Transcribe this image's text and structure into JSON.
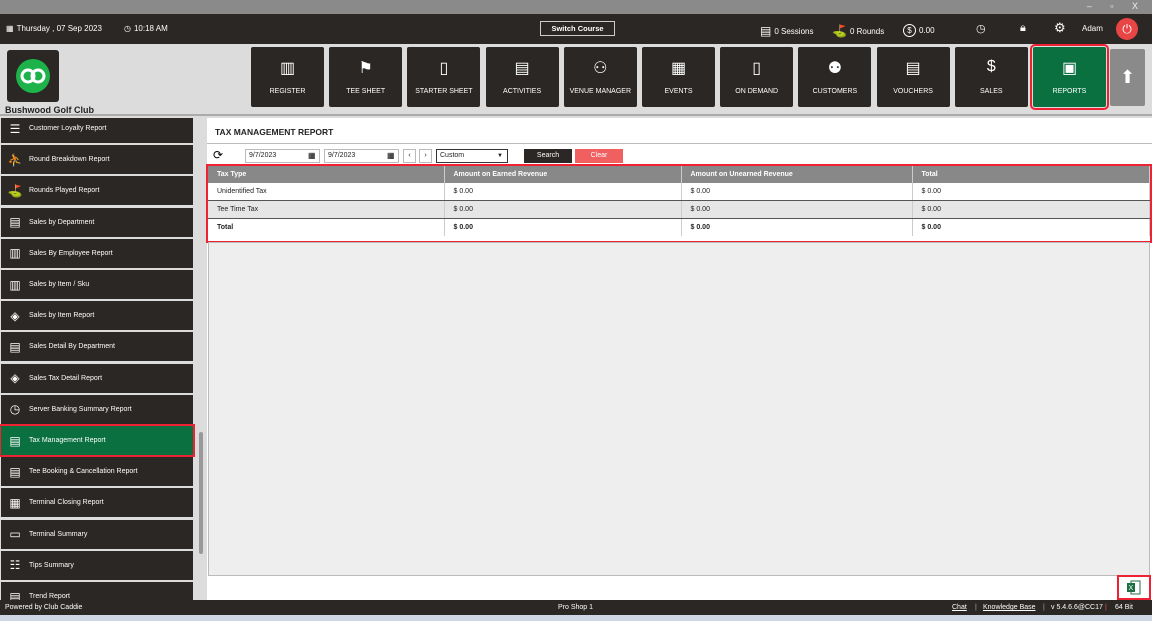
{
  "window": {
    "controls": "– ▫ X"
  },
  "header": {
    "date": "Thursday , 07 Sep 2023",
    "time": "10:18 AM",
    "switch_course": "Switch Course",
    "sessions": "0 Sessions",
    "rounds": "0 Rounds",
    "balance": "0.00",
    "user": "Adam"
  },
  "club_name": "Bushwood Golf Club",
  "nav": [
    {
      "label": "REGISTER",
      "icon": "barcode-scanner"
    },
    {
      "label": "TEE SHEET",
      "icon": "flag-sheet"
    },
    {
      "label": "STARTER SHEET",
      "icon": "tablet"
    },
    {
      "label": "ACTIVITIES",
      "icon": "calendar-list"
    },
    {
      "label": "VENUE MANAGER",
      "icon": "people-table"
    },
    {
      "label": "EVENTS",
      "icon": "calendar-edit"
    },
    {
      "label": "ON DEMAND",
      "icon": "mobile"
    },
    {
      "label": "CUSTOMERS",
      "icon": "users"
    },
    {
      "label": "VOUCHERS",
      "icon": "document"
    },
    {
      "label": "SALES",
      "icon": "cash"
    },
    {
      "label": "REPORTS",
      "icon": "report",
      "active": true
    }
  ],
  "sidebar": {
    "items": [
      {
        "label": "Customer Loyalty Report"
      },
      {
        "label": "Round Breakdown Report"
      },
      {
        "label": "Rounds Played Report"
      },
      {
        "label": "Sales by Department"
      },
      {
        "label": "Sales By Employee Report"
      },
      {
        "label": "Sales by Item / Sku"
      },
      {
        "label": "Sales by Item Report"
      },
      {
        "label": "Sales Detail By Department"
      },
      {
        "label": "Sales Tax Detail Report"
      },
      {
        "label": "Server Banking Summary Report"
      },
      {
        "label": "Tax Management Report",
        "active": true
      },
      {
        "label": "Tee Booking & Cancellation Report"
      },
      {
        "label": "Terminal Closing Report"
      },
      {
        "label": "Terminal Summary"
      },
      {
        "label": "Tips Summary"
      },
      {
        "label": "Trend Report"
      }
    ]
  },
  "report": {
    "title": "TAX MANAGEMENT REPORT",
    "from_date": "9/7/2023",
    "to_date": "9/7/2023",
    "range": "Custom",
    "search": "Search",
    "clear": "Clear",
    "columns": [
      "Tax Type",
      "Amount on Earned Revenue",
      "Amount on Unearned Revenue",
      "Total"
    ],
    "rows": [
      [
        "Unidentified Tax",
        "$ 0.00",
        "$ 0.00",
        "$ 0.00"
      ],
      [
        "Tee Time Tax",
        "$ 0.00",
        "$ 0.00",
        "$ 0.00"
      ]
    ],
    "total": [
      "Total",
      "$ 0.00",
      "$ 0.00",
      "$ 0.00"
    ]
  },
  "footer": {
    "powered": "Powered by Club Caddie",
    "station": "Pro Shop 1",
    "chat": "Chat",
    "kb": "Knowledge Base",
    "version": "v 5.4.6.6@CC17",
    "bits": "64 Bit"
  },
  "colors": {
    "dark": "#2b2724",
    "accent": "#0a7040",
    "highlight": "#e22233",
    "clear": "#f06060"
  }
}
